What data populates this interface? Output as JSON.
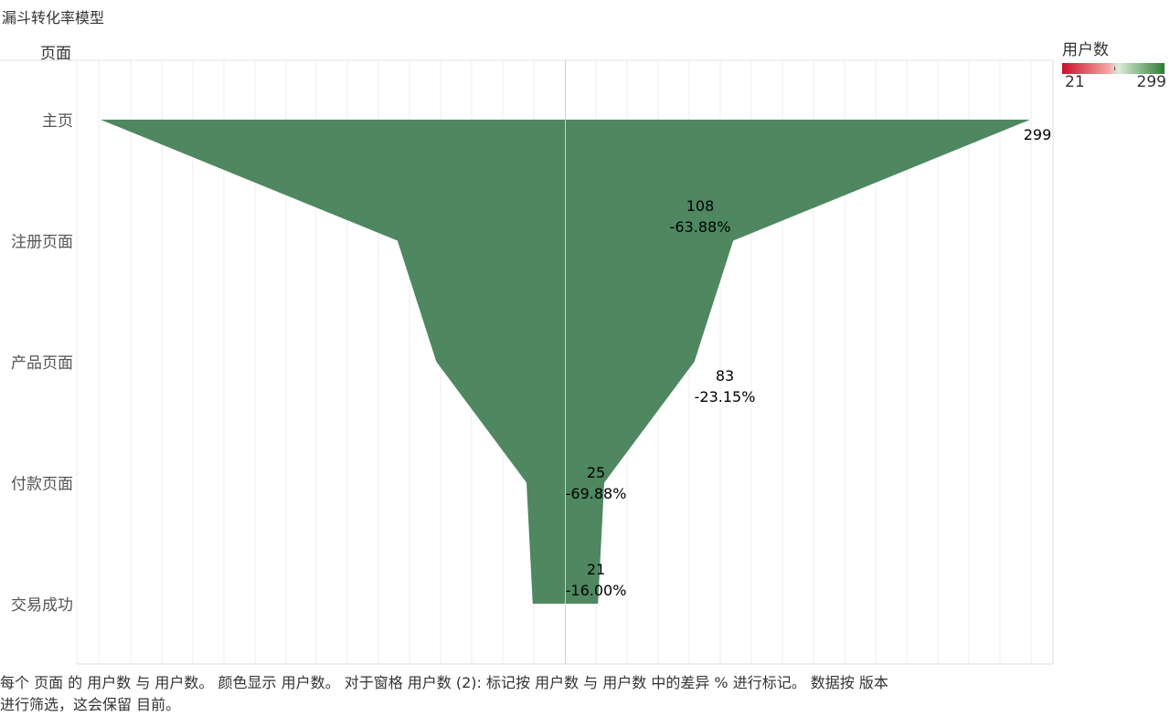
{
  "page": {
    "title": "漏斗转化率模型"
  },
  "axis": {
    "row_header": "页面"
  },
  "legend": {
    "title": "用户数",
    "min": "21",
    "max": "299",
    "colors": [
      "#c8102e",
      "#f4a3a0",
      "#2e7d32"
    ]
  },
  "footer": {
    "line1": "每个 页面 的 用户数 与 用户数。 颜色显示 用户数。 对于窗格 用户数 (2): 标记按 用户数 与 用户数 中的差异 % 进行标记。 数据按 版本",
    "line2": "进行筛选，这会保留 目前。"
  },
  "chart_data": {
    "type": "area",
    "orientation": "funnel",
    "categories": [
      "主页",
      "注册页面",
      "产品页面",
      "付款页面",
      "交易成功"
    ],
    "series": [
      {
        "values": [
          299,
          108,
          83,
          25,
          21
        ]
      }
    ],
    "labels": [
      {
        "value": "299",
        "pct": ""
      },
      {
        "value": "108",
        "pct": "-63.88%"
      },
      {
        "value": "83",
        "pct": "-23.15%"
      },
      {
        "value": "25",
        "pct": "-69.88%"
      },
      {
        "value": "21",
        "pct": "-16.00%"
      }
    ],
    "fill_color": "#4e8760",
    "grid": true
  }
}
